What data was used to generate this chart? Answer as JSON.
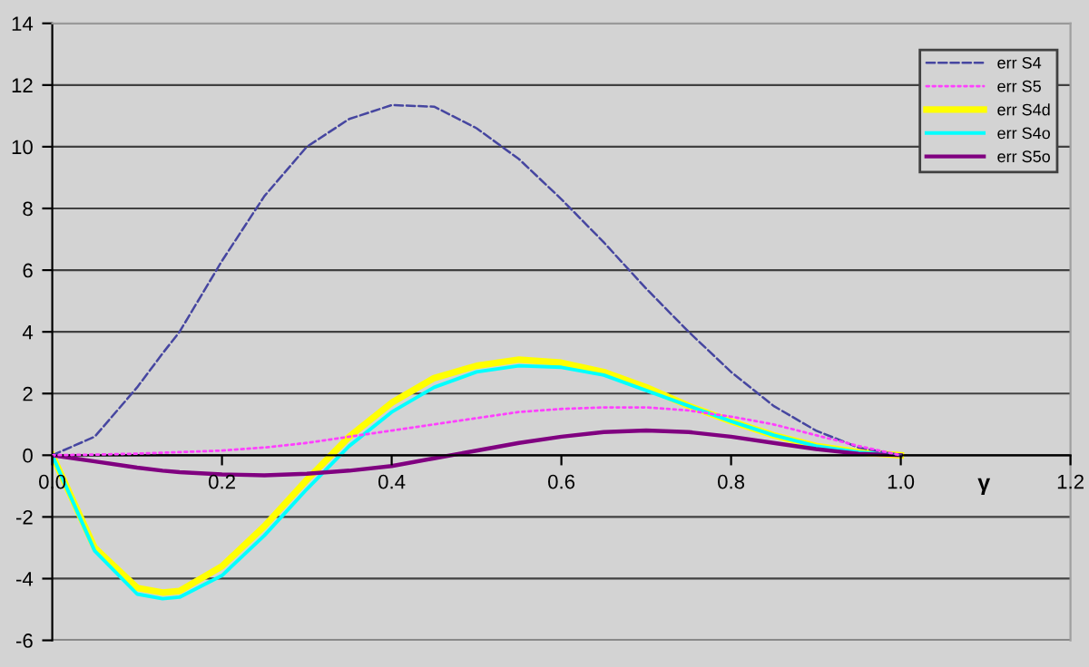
{
  "chart_data": {
    "type": "line",
    "xlabel": "γ",
    "x": [
      0,
      0.05,
      0.1,
      0.13,
      0.15,
      0.2,
      0.25,
      0.3,
      0.35,
      0.4,
      0.45,
      0.5,
      0.55,
      0.6,
      0.65,
      0.7,
      0.75,
      0.8,
      0.85,
      0.9,
      0.95,
      1.0
    ],
    "series": [
      {
        "name": "err S4",
        "color": "#4646a0",
        "line_style": "dashed",
        "values": [
          0,
          0.6,
          2.2,
          3.3,
          4.0,
          6.3,
          8.4,
          10.0,
          10.9,
          11.35,
          11.3,
          10.6,
          9.6,
          8.3,
          6.9,
          5.4,
          4.0,
          2.7,
          1.6,
          0.8,
          0.25,
          0
        ]
      },
      {
        "name": "err S5",
        "color": "#ff40ff",
        "line_style": "dotted",
        "values": [
          0,
          0.02,
          0.05,
          0.08,
          0.1,
          0.15,
          0.25,
          0.4,
          0.6,
          0.8,
          1.0,
          1.2,
          1.4,
          1.5,
          1.55,
          1.55,
          1.45,
          1.25,
          1.0,
          0.65,
          0.3,
          0
        ]
      },
      {
        "name": "err S4d",
        "color": "#ffff00",
        "line_style": "solid",
        "values": [
          0,
          -3.0,
          -4.3,
          -4.45,
          -4.4,
          -3.6,
          -2.3,
          -0.8,
          0.6,
          1.7,
          2.5,
          2.9,
          3.1,
          3.0,
          2.7,
          2.2,
          1.6,
          1.1,
          0.65,
          0.3,
          0.1,
          0
        ]
      },
      {
        "name": "err S4o",
        "color": "#00ffff",
        "line_style": "solid",
        "values": [
          0,
          -3.1,
          -4.5,
          -4.65,
          -4.6,
          -3.9,
          -2.6,
          -1.1,
          0.3,
          1.4,
          2.2,
          2.7,
          2.9,
          2.85,
          2.6,
          2.1,
          1.6,
          1.1,
          0.65,
          0.3,
          0.1,
          0
        ]
      },
      {
        "name": "err S5o",
        "color": "#800080",
        "line_style": "solid",
        "values": [
          0,
          -0.2,
          -0.4,
          -0.5,
          -0.55,
          -0.62,
          -0.65,
          -0.6,
          -0.5,
          -0.35,
          -0.1,
          0.15,
          0.4,
          0.6,
          0.75,
          0.8,
          0.75,
          0.6,
          0.4,
          0.2,
          0.05,
          0
        ]
      }
    ],
    "xlim": [
      0,
      1.2
    ],
    "xticks": [
      {
        "value": 0,
        "label": "0.0"
      },
      0.2,
      0.4,
      0.6,
      0.8,
      {
        "value": 1.0,
        "label": "1.0"
      },
      1.2
    ],
    "ylim": [
      -6,
      14
    ],
    "yticks": [
      -6,
      -4,
      -2,
      0,
      2,
      4,
      6,
      8,
      10,
      12,
      14
    ],
    "grid": "y",
    "legend": "top right",
    "marker": "none"
  }
}
